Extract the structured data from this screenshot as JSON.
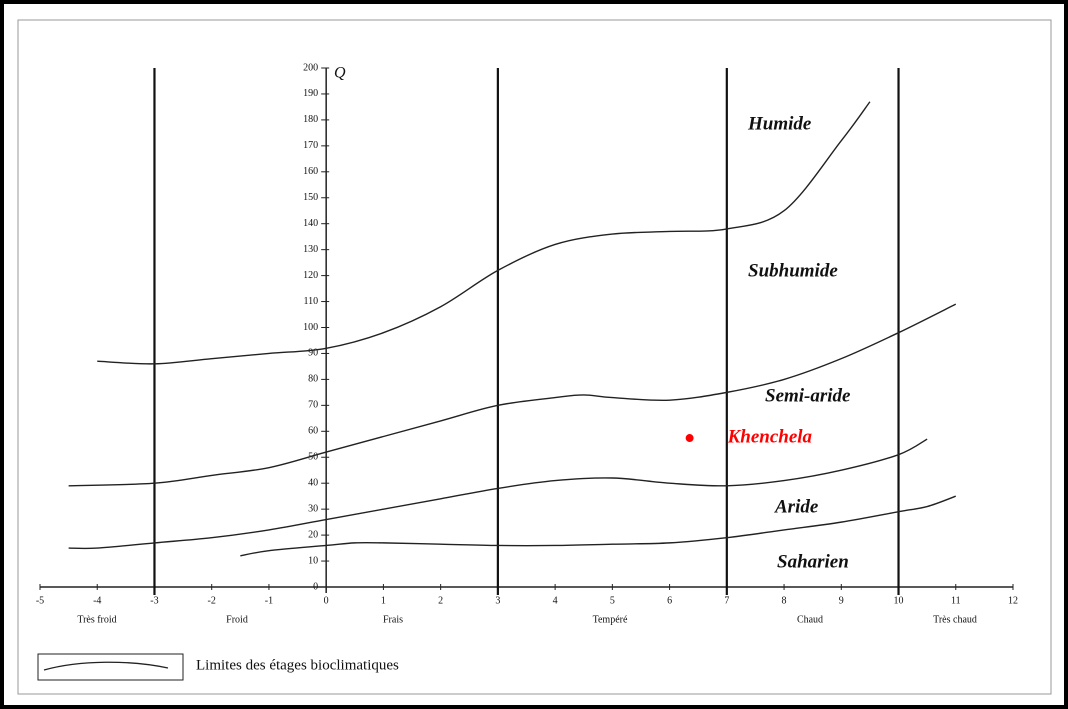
{
  "chart_data": {
    "type": "line",
    "y_label": "Q",
    "legend_label": "Limites des étages bioclimatiques",
    "xlim": [
      -5,
      12
    ],
    "ylim": [
      0,
      200
    ],
    "xticks": [
      -5,
      -4,
      -3,
      -2,
      -1,
      0,
      1,
      2,
      3,
      4,
      5,
      6,
      7,
      8,
      9,
      10,
      11,
      12
    ],
    "yticks": [
      0,
      10,
      20,
      30,
      40,
      50,
      60,
      70,
      80,
      90,
      100,
      110,
      120,
      130,
      140,
      150,
      160,
      170,
      180,
      190,
      200
    ],
    "vlines": [
      -3,
      3,
      7,
      10
    ],
    "regions": [
      "Très froid",
      "Froid",
      "Frais",
      "Tempéré",
      "Chaud",
      "Très chaud"
    ],
    "zones": [
      "Humide",
      "Subhumide",
      "Semi-aride",
      "Aride",
      "Saharien"
    ],
    "series": [
      {
        "color": "#222",
        "x": [
          -4,
          -3,
          -2,
          -1,
          0,
          1,
          2,
          3,
          4,
          5,
          6,
          7,
          8,
          9,
          9.5
        ],
        "values": [
          87,
          86,
          88,
          90,
          92,
          98,
          108,
          122,
          132,
          136,
          137,
          138,
          145,
          172,
          187
        ]
      },
      {
        "color": "#222",
        "x": [
          -4.5,
          -3,
          -2,
          -1,
          0,
          1,
          2,
          3,
          4,
          4.5,
          5,
          6,
          7,
          8,
          9,
          10,
          11
        ],
        "values": [
          39,
          40,
          43,
          46,
          52,
          58,
          64,
          70,
          73,
          74,
          73,
          72,
          75,
          80,
          88,
          98,
          109
        ]
      },
      {
        "color": "#222",
        "x": [
          -4.5,
          -4,
          -3,
          -2,
          -1,
          0,
          1,
          2,
          3,
          4,
          5,
          6,
          7,
          8,
          9,
          10,
          10.5
        ],
        "values": [
          15,
          15,
          17,
          19,
          22,
          26,
          30,
          34,
          38,
          41,
          42,
          40,
          39,
          41,
          45,
          51,
          57
        ]
      },
      {
        "color": "#222",
        "x": [
          -1.5,
          -1,
          0,
          0.5,
          1,
          2,
          3,
          4,
          5,
          6,
          7,
          8,
          9,
          10,
          10.5,
          11
        ],
        "values": [
          12,
          14,
          16,
          17,
          17,
          16.5,
          16,
          16,
          16.5,
          17,
          19,
          22,
          25,
          29,
          31,
          35
        ]
      }
    ],
    "points": [
      {
        "label": "Khenchela",
        "x": 6.35,
        "y": 57.4,
        "color": "#ff0000"
      }
    ]
  }
}
